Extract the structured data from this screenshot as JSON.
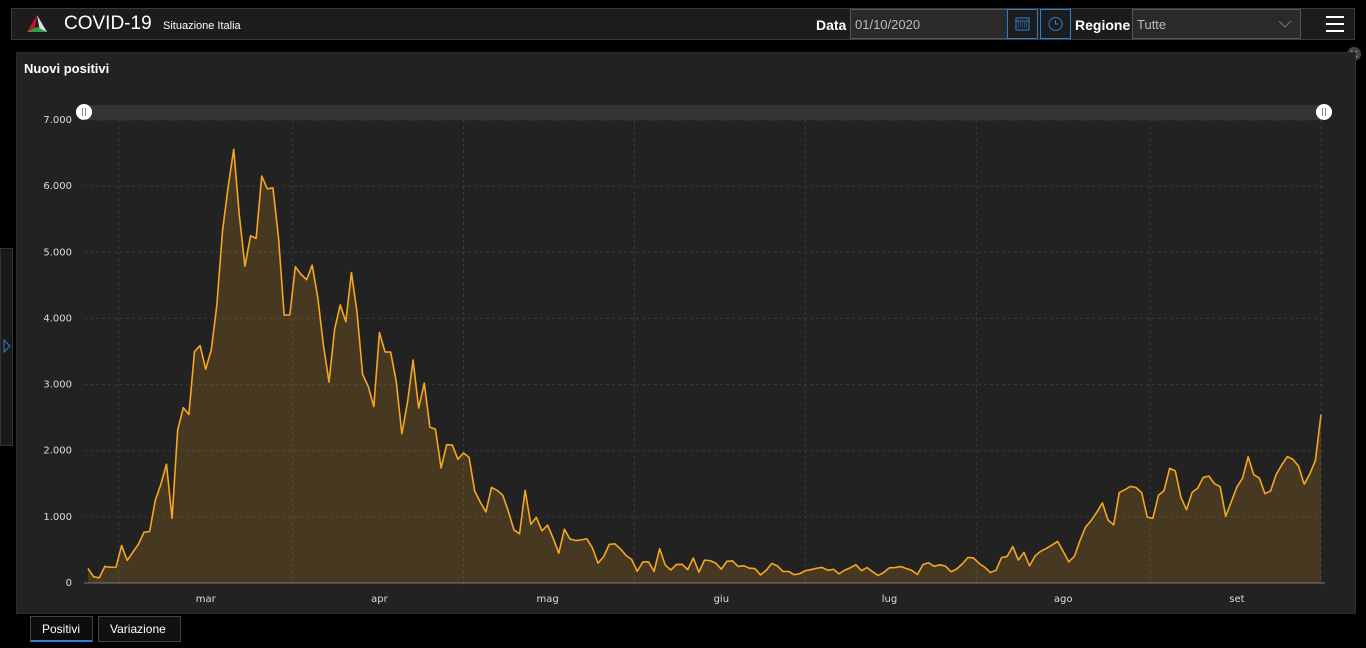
{
  "header": {
    "title": "COVID-19",
    "subtitle": "Situazione Italia",
    "date_label": "Data",
    "date_value": "01/10/2020",
    "region_label": "Regione",
    "region_value": "Tutte"
  },
  "tabs": [
    "Positivi",
    "Variazione"
  ],
  "chart_data": {
    "type": "line",
    "title": "Nuovi positivi",
    "categories": [
      null,
      null,
      null,
      null,
      null,
      null,
      null,
      null,
      null,
      null,
      null,
      null,
      null,
      null,
      null,
      null,
      null,
      null,
      null,
      null,
      null,
      "mar",
      null,
      null,
      null,
      null,
      null,
      null,
      null,
      null,
      null,
      null,
      null,
      null,
      null,
      null,
      null,
      null,
      null,
      null,
      null,
      null,
      null,
      null,
      null,
      null,
      null,
      null,
      null,
      null,
      null,
      null,
      "apr",
      null,
      null,
      null,
      null,
      null,
      null,
      null,
      null,
      null,
      null,
      null,
      null,
      null,
      null,
      null,
      null,
      null,
      null,
      null,
      null,
      null,
      null,
      null,
      null,
      null,
      null,
      null,
      null,
      null,
      "mag",
      null,
      null,
      null,
      null,
      null,
      null,
      null,
      null,
      null,
      null,
      null,
      null,
      null,
      null,
      null,
      null,
      null,
      null,
      null,
      null,
      null,
      null,
      null,
      null,
      null,
      null,
      null,
      null,
      null,
      null,
      "giu",
      null,
      null,
      null,
      null,
      null,
      null,
      null,
      null,
      null,
      null,
      null,
      null,
      null,
      null,
      null,
      null,
      null,
      null,
      null,
      null,
      null,
      null,
      null,
      null,
      null,
      null,
      null,
      null,
      null,
      "lug",
      null,
      null,
      null,
      null,
      null,
      null,
      null,
      null,
      null,
      null,
      null,
      null,
      null,
      null,
      null,
      null,
      null,
      null,
      null,
      null,
      null,
      null,
      null,
      null,
      null,
      null,
      null,
      null,
      null,
      null,
      "ago",
      null,
      null,
      null,
      null,
      null,
      null,
      null,
      null,
      null,
      null,
      null,
      null,
      null,
      null,
      null,
      null,
      null,
      null,
      null,
      null,
      null,
      null,
      null,
      null,
      null,
      null,
      null,
      null,
      null,
      null,
      "set",
      null,
      null,
      null,
      null,
      null,
      null,
      null,
      null,
      null,
      null,
      null,
      null,
      null,
      null,
      null
    ],
    "series": [
      {
        "name": "Nuovi positivi",
        "color": "#f5a623",
        "values": [
          221,
          93,
          78,
          250,
          238,
          240,
          566,
          342,
          466,
          587,
          769,
          778,
          1247,
          1492,
          1797,
          977,
          2313,
          2651,
          2547,
          3497,
          3590,
          3233,
          3526,
          4207,
          5322,
          5986,
          6557,
          5560,
          4789,
          5249,
          5210,
          6153,
          5959,
          5974,
          5217,
          4050,
          4053,
          4782,
          4668,
          4585,
          4805,
          4316,
          3599,
          3039,
          3836,
          4204,
          3951,
          4694,
          4092,
          3153,
          2972,
          2667,
          3786,
          3493,
          3491,
          3047,
          2256,
          2729,
          3370,
          2646,
          3021,
          2357,
          2324,
          1739,
          2091,
          2086,
          1872,
          1965,
          1900,
          1389,
          1221,
          1075,
          1444,
          1401,
          1327,
          1083,
          802,
          744,
          1402,
          888,
          992,
          789,
          875,
          675,
          451,
          813,
          665,
          642,
          652,
          669,
          531,
          300,
          397,
          584,
          593,
          516,
          416,
          355,
          178,
          318,
          321,
          177,
          518,
          270,
          197,
          280,
          283,
          202,
          379,
          163,
          346,
          338,
          301,
          210,
          329,
          333,
          251,
          262,
          224,
          218,
          122,
          190,
          296,
          259,
          175,
          174,
          126,
          142,
          187,
          201,
          223,
          235,
          192,
          208,
          138,
          193,
          229,
          276,
          188,
          234,
          169,
          114,
          162,
          230,
          233,
          249,
          219,
          190,
          129,
          282,
          306,
          252,
          275,
          255,
          170,
          212,
          289,
          386,
          379,
          295,
          239,
          159,
          190,
          384,
          402,
          552,
          347,
          463,
          259,
          412,
          481,
          523,
          574,
          629,
          479,
          320,
          403,
          642,
          845,
          947,
          1071,
          1210,
          953,
          878,
          1367,
          1411,
          1460,
          1444,
          1365,
          996,
          978,
          1326,
          1397,
          1733,
          1695,
          1297,
          1108,
          1370,
          1434,
          1597,
          1616,
          1501,
          1458,
          1008,
          1229,
          1452,
          1585,
          1907,
          1638,
          1587,
          1350,
          1392,
          1640,
          1786,
          1912,
          1869,
          1766,
          1494,
          1648,
          1851,
          2548
        ]
      }
    ],
    "ylim": [
      0,
      7000
    ],
    "yticks": [
      0,
      {
        "value": 1000,
        "label": "1.000"
      },
      {
        "value": 2000,
        "label": "2.000"
      },
      {
        "value": 3000,
        "label": "3.000"
      },
      {
        "value": 4000,
        "label": "4.000"
      },
      {
        "value": 5000,
        "label": "5.000"
      },
      {
        "value": 6000,
        "label": "6.000"
      },
      {
        "value": 7000,
        "label": "7.000"
      }
    ],
    "grid": true
  }
}
